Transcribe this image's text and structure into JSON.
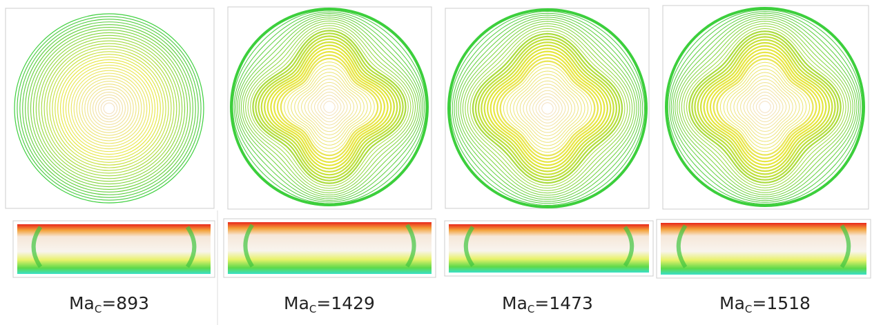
{
  "panels": [
    {
      "symbol": "Ma",
      "subscript": "C",
      "text": "=893"
    },
    {
      "symbol": "Ma",
      "subscript": "C",
      "text": "=1429"
    },
    {
      "symbol": "Ma",
      "subscript": "C",
      "text": "=1473"
    },
    {
      "symbol": "Ma",
      "subscript": "C",
      "text": "=1518"
    }
  ]
}
